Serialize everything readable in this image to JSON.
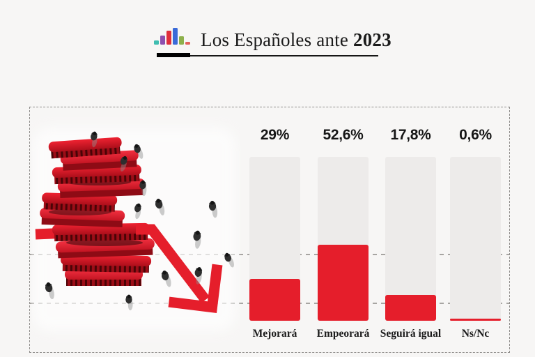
{
  "page": {
    "bg": "#f7f6f5"
  },
  "header": {
    "title_regular": "Los Españoles ante ",
    "title_bold": "2023",
    "logo_bars": [
      {
        "color": "#3fbdb0",
        "h": 6
      },
      {
        "color": "#8e4fae",
        "h": 13
      },
      {
        "color": "#e02e3b",
        "h": 20
      },
      {
        "color": "#3a6ad8",
        "h": 24
      },
      {
        "color": "#8db04b",
        "h": 12
      },
      {
        "color": "#e2625b",
        "h": 4
      }
    ]
  },
  "chart_data": {
    "type": "bar",
    "title": "Los Españoles ante 2023",
    "categories": [
      "Mejorará",
      "Empeorará",
      "Seguirá igual",
      "Ns/Nc"
    ],
    "values": [
      29,
      52.6,
      17.8,
      0.6
    ],
    "value_labels": [
      "29%",
      "52,6%",
      "17,8%",
      "0,6%"
    ],
    "xlabel": "",
    "ylabel": "",
    "ylim": [
      0,
      113
    ],
    "grid": true,
    "legend": "none",
    "bar_color": "#e51e2b",
    "track_color": "#edebea"
  },
  "illustration": {
    "name": "falling-coins-decline-arrow"
  }
}
